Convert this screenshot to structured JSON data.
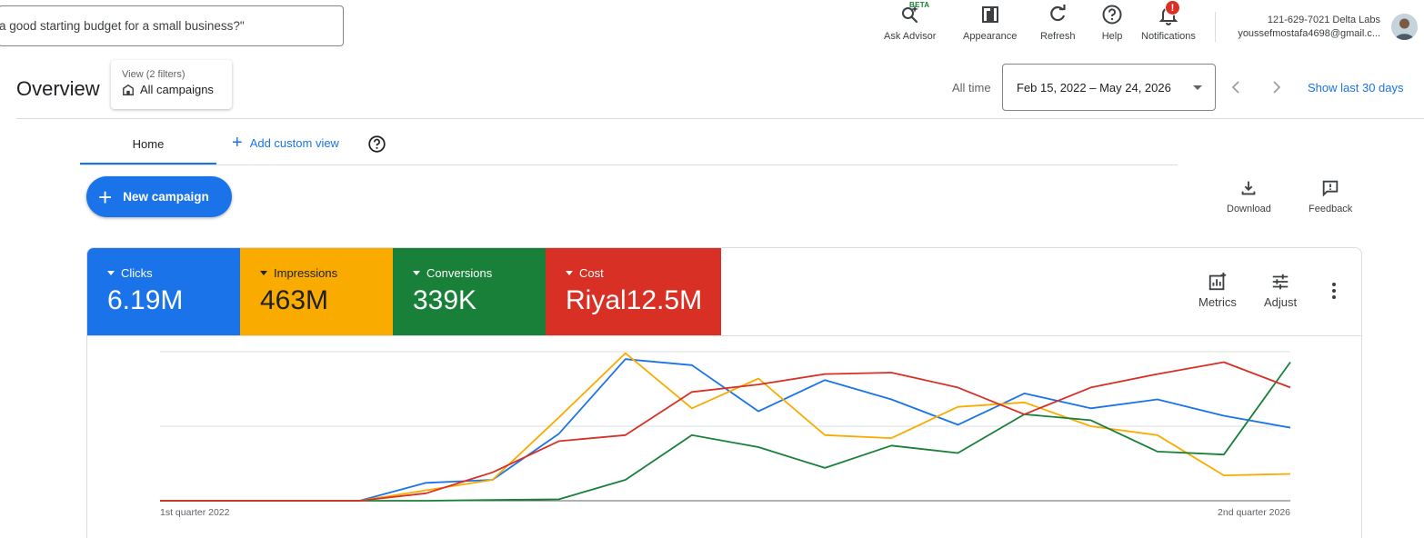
{
  "header": {
    "search_text": "a good starting budget for a small business?\"",
    "tools": {
      "ask_advisor": "Ask Advisor",
      "beta": "BETA",
      "appearance": "Appearance",
      "refresh": "Refresh",
      "help": "Help",
      "notifications": "Notifications",
      "notifications_badge": "!"
    },
    "account": {
      "line1": "121-629-7021 Delta Labs",
      "line2": "youssefmostafa4698@gmail.c..."
    }
  },
  "overview": {
    "title": "Overview",
    "view_filters": "View (2 filters)",
    "view_name": "All campaigns",
    "all_time": "All time",
    "date_range": "Feb 15, 2022 – May 24, 2026",
    "show_last": "Show last 30 days"
  },
  "tabs": {
    "home": "Home",
    "add_custom_view": "Add custom view"
  },
  "actions": {
    "new_campaign": "New campaign",
    "download": "Download",
    "feedback": "Feedback"
  },
  "metrics": {
    "clicks": {
      "label": "Clicks",
      "value": "6.19M",
      "color": "#1a73e8"
    },
    "impressions": {
      "label": "Impressions",
      "value": "463M",
      "color": "#f9ab00"
    },
    "conversions": {
      "label": "Conversions",
      "value": "339K",
      "color": "#188038"
    },
    "cost": {
      "label": "Cost",
      "value": "Riyal12.5M",
      "color": "#d93025"
    },
    "metrics_btn": "Metrics",
    "adjust_btn": "Adjust"
  },
  "chart_data": {
    "type": "line",
    "x_start_label": "1st quarter 2022",
    "x_end_label": "2nd quarter 2026",
    "x": [
      0,
      1,
      2,
      3,
      4,
      5,
      6,
      7,
      8,
      9,
      10,
      11,
      12,
      13,
      14,
      15,
      16,
      17
    ],
    "ylim": [
      0,
      100
    ],
    "grid": true,
    "series": [
      {
        "color": "#1a73e8",
        "values": [
          0,
          0,
          0,
          0,
          12,
          14,
          45,
          95,
          91,
          60,
          81,
          68,
          51,
          72,
          62,
          68,
          57,
          49
        ]
      },
      {
        "color": "#f9ab00",
        "values": [
          0,
          0,
          0,
          0,
          7,
          14,
          56,
          99,
          62,
          82,
          44,
          42,
          63,
          66,
          50,
          44,
          17,
          18
        ]
      },
      {
        "color": "#188038",
        "values": [
          0,
          0,
          0,
          0,
          0,
          0.5,
          1,
          14,
          44,
          36,
          22,
          37,
          32,
          58,
          54,
          33,
          31,
          93
        ]
      },
      {
        "color": "#d93025",
        "values": [
          0,
          0,
          0,
          0,
          5,
          19,
          40,
          44,
          73,
          78,
          85,
          86,
          76,
          58,
          76,
          85,
          93,
          76
        ]
      }
    ]
  }
}
